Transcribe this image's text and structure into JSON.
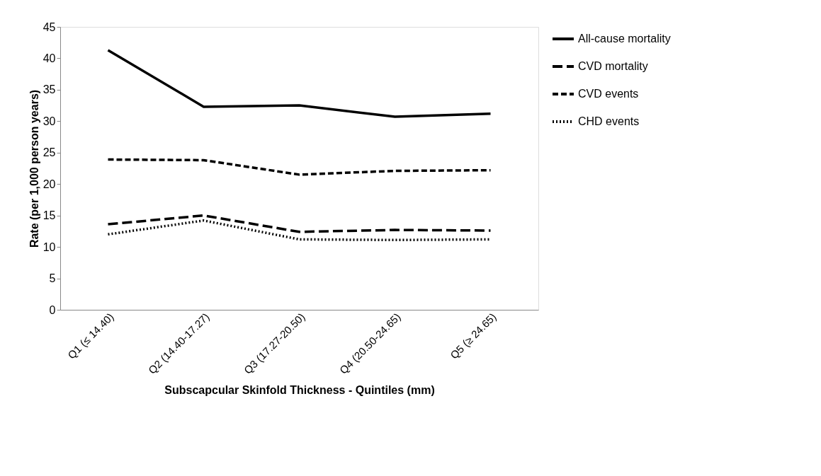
{
  "chart_data": {
    "type": "line",
    "xlabel": "Subscapcular Skinfold Thickness - Quintiles (mm)",
    "ylabel": "Rate (per 1,000 person years)",
    "categories": [
      "Q1 (≤ 14.40)",
      "Q2 (14.40-17.27)",
      "Q3 (17.27-20.50)",
      "Q4 (20.50-24.65)",
      "Q5 (≥ 24.65)"
    ],
    "series": [
      {
        "name": "All-cause mortality",
        "color": "#000000",
        "line_style": "solid",
        "values": [
          41.3,
          32.3,
          32.5,
          30.7,
          31.2
        ]
      },
      {
        "name": "CVD mortality",
        "color": "#000000",
        "line_style": "longdash",
        "values": [
          13.6,
          15.0,
          12.4,
          12.7,
          12.6
        ]
      },
      {
        "name": "CVD events",
        "color": "#000000",
        "line_style": "dashed",
        "values": [
          23.9,
          23.8,
          21.5,
          22.1,
          22.2
        ]
      },
      {
        "name": "CHD events",
        "color": "#000000",
        "line_style": "dotted",
        "values": [
          12.0,
          14.2,
          11.2,
          11.1,
          11.2
        ]
      }
    ],
    "ylim": [
      0,
      45
    ],
    "yticks": [
      0,
      5,
      10,
      15,
      20,
      25,
      30,
      35,
      40,
      45
    ],
    "grid": false,
    "legend": "right"
  }
}
